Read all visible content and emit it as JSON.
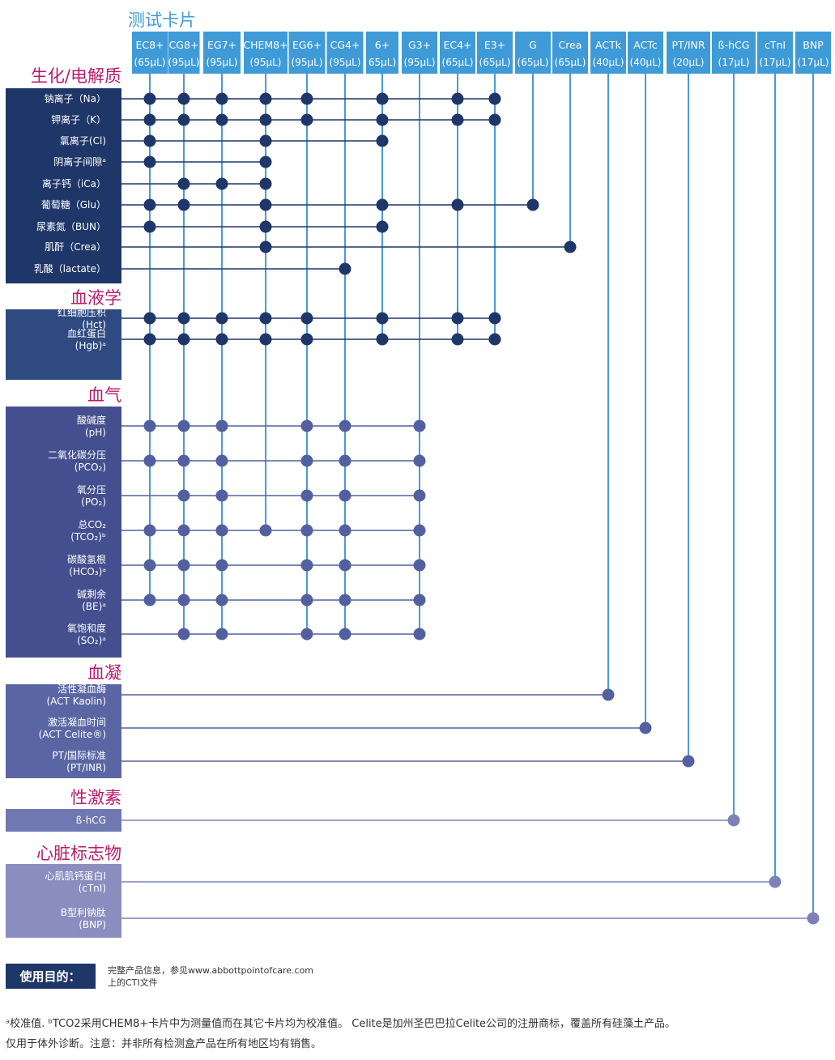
{
  "title": "测试卡片",
  "colors": {
    "title": "#3f9bd8",
    "header_fill": "#3f9bd8",
    "column_line": "#4a9ad6",
    "section_title": "#b81b6c",
    "row_line_dark": "#1f3768",
    "row_line_mid": "#5260a0",
    "row_line_light": "#7d81b9"
  },
  "cartridges": [
    {
      "id": "EC8",
      "name": "EC8+",
      "vol": "(65μL)"
    },
    {
      "id": "CG8",
      "name": "CG8+",
      "vol": "(95μL)"
    },
    {
      "id": "EG7",
      "name": "EG7+",
      "vol": "(95μL)"
    },
    {
      "id": "CHEM8",
      "name": "CHEM8+",
      "vol": "(95μL)"
    },
    {
      "id": "EG6",
      "name": "EG6+",
      "vol": "(95μL)"
    },
    {
      "id": "CG4",
      "name": "CG4+",
      "vol": "(95μL)"
    },
    {
      "id": "6P",
      "name": "6+",
      "vol": "65μL)"
    },
    {
      "id": "G3",
      "name": "G3+",
      "vol": "(95μL)"
    },
    {
      "id": "EC4",
      "name": "EC4+",
      "vol": "(65μL)"
    },
    {
      "id": "E3",
      "name": "E3+",
      "vol": "(65μL)"
    },
    {
      "id": "G",
      "name": "G",
      "vol": "(65μL)"
    },
    {
      "id": "Crea",
      "name": "Crea",
      "vol": "(65μL)"
    },
    {
      "id": "ACTk",
      "name": "ACTk",
      "vol": "(40μL)"
    },
    {
      "id": "ACTc",
      "name": "ACTc",
      "vol": "(40μL)"
    },
    {
      "id": "PT",
      "name": "PT/INR",
      "vol": "(20μL)"
    },
    {
      "id": "hCG",
      "name": "ß-hCG",
      "vol": "(17μL)"
    },
    {
      "id": "cTnI",
      "name": "cTnI",
      "vol": "(17μL)"
    },
    {
      "id": "BNP",
      "name": "BNP",
      "vol": "(17μL)"
    }
  ],
  "sections": [
    {
      "id": "chem",
      "title": "生化/电解质",
      "fill": "#1f3768",
      "rows": [
        {
          "label": [
            "钠离子（Na）"
          ],
          "tests": [
            "EC8",
            "CG8",
            "EG7",
            "CHEM8",
            "EG6",
            "6P",
            "EC4",
            "E3"
          ]
        },
        {
          "label": [
            "钾离子（K）"
          ],
          "tests": [
            "EC8",
            "CG8",
            "EG7",
            "CHEM8",
            "EG6",
            "6P",
            "EC4",
            "E3"
          ]
        },
        {
          "label": [
            "氯离子(Cl)"
          ],
          "tests": [
            "EC8",
            "CHEM8",
            "6P"
          ]
        },
        {
          "label": [
            "阴离子间隙ᵃ"
          ],
          "tests": [
            "EC8",
            "CHEM8"
          ]
        },
        {
          "label": [
            "离子钙（iCa）"
          ],
          "tests": [
            "CG8",
            "EG7",
            "CHEM8"
          ]
        },
        {
          "label": [
            "葡萄糖（Glu）"
          ],
          "tests": [
            "EC8",
            "CG8",
            "CHEM8",
            "6P",
            "EC4",
            "G"
          ]
        },
        {
          "label": [
            "尿素氮（BUN）"
          ],
          "tests": [
            "EC8",
            "CHEM8",
            "6P"
          ]
        },
        {
          "label": [
            "肌酐（Crea）"
          ],
          "tests": [
            "CHEM8",
            "Crea"
          ]
        },
        {
          "label": [
            "乳酸（lactate）"
          ],
          "tests": [
            "CG4"
          ]
        }
      ]
    },
    {
      "id": "heme",
      "title": "血液学",
      "fill": "#2f4a80",
      "rows": [
        {
          "label": [
            "红细胞压积",
            "(Hct)"
          ],
          "tests": [
            "EC8",
            "CG8",
            "EG7",
            "CHEM8",
            "EG6",
            "6P",
            "EC4",
            "E3"
          ]
        },
        {
          "label": [
            "血红蛋白",
            "(Hgb)ᵃ"
          ],
          "tests": [
            "EC8",
            "CG8",
            "EG7",
            "CHEM8",
            "EG6",
            "6P",
            "EC4",
            "E3"
          ]
        }
      ]
    },
    {
      "id": "gas",
      "title": "血气",
      "fill": "#434f8e",
      "rows": [
        {
          "label": [
            "酸碱度",
            "(pH)"
          ],
          "tests": [
            "EC8",
            "CG8",
            "EG7",
            "EG6",
            "CG4",
            "G3"
          ]
        },
        {
          "label": [
            "二氧化碳分压",
            "(PCO₂)"
          ],
          "tests": [
            "EC8",
            "CG8",
            "EG7",
            "EG6",
            "CG4",
            "G3"
          ]
        },
        {
          "label": [
            "氧分压",
            "(PO₂)"
          ],
          "tests": [
            "CG8",
            "EG7",
            "EG6",
            "CG4",
            "G3"
          ]
        },
        {
          "label": [
            "总CO₂",
            "(TCO₂)ᵇ"
          ],
          "tests": [
            "EC8",
            "CG8",
            "EG7",
            "CHEM8",
            "EG6",
            "CG4",
            "G3"
          ]
        },
        {
          "label": [
            "碳酸氢根",
            "(HCO₃)ᵃ"
          ],
          "tests": [
            "EC8",
            "CG8",
            "EG7",
            "EG6",
            "CG4",
            "G3"
          ]
        },
        {
          "label": [
            "碱剩余",
            "(BE)ᵃ"
          ],
          "tests": [
            "EC8",
            "CG8",
            "EG7",
            "EG6",
            "CG4",
            "G3"
          ]
        },
        {
          "label": [
            "氧饱和度",
            "(SO₂)ᵃ"
          ],
          "tests": [
            "CG8",
            "EG7",
            "EG6",
            "CG4",
            "G3"
          ]
        }
      ]
    },
    {
      "id": "coag",
      "title": "血凝",
      "fill": "#5a66a3",
      "rows": [
        {
          "label": [
            "活性凝血酶",
            "(ACT Kaolin)"
          ],
          "tests": [
            "ACTk"
          ]
        },
        {
          "label": [
            "激活凝血时间",
            "(ACT Celite®)"
          ],
          "tests": [
            "ACTc"
          ]
        },
        {
          "label": [
            "PT/国际标准",
            "(PT/INR)"
          ],
          "tests": [
            "PT"
          ]
        }
      ]
    },
    {
      "id": "horm",
      "title": "性激素",
      "fill": "#6f78b1",
      "rows": [
        {
          "label": [
            "ß-hCG"
          ],
          "tests": [
            "hCG"
          ]
        }
      ]
    },
    {
      "id": "card",
      "title": "心脏标志物",
      "fill": "#8a8dbe",
      "rows": [
        {
          "label": [
            "心肌肌钙蛋白I",
            "(cTnI)"
          ],
          "tests": [
            "cTnI"
          ]
        },
        {
          "label": [
            "B型利钠肽",
            "(BNP)"
          ],
          "tests": [
            "BNP"
          ]
        }
      ]
    }
  ],
  "intended_use": {
    "label": "使用目的：",
    "text_line1": "完整产品信息，参见www.abbottpointofcare.com",
    "text_line2": "上的CTI文件",
    "fill": "#1f3768"
  },
  "footnotes": [
    "ᵃ校准值. ᵇTCO2采用CHEM8+卡片中为测量值而在其它卡片均为校准值。 Celite是加州圣巴巴拉Celite公司的注册商标，覆盖所有硅藻土产品。",
    "仅用于体外诊断。注意：并非所有检测盒产品在所有地区均有销售。"
  ]
}
